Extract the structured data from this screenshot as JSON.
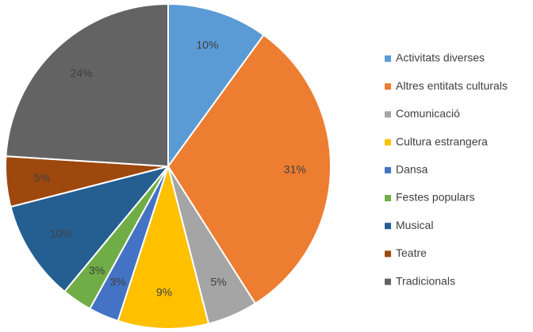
{
  "chart_data": {
    "type": "pie",
    "categories": [
      "Activitats diverses",
      "Altres entitats culturals",
      "Comunicació",
      "Cultura estrangera",
      "Dansa",
      "Festes populars",
      "Musical",
      "Teatre",
      "Tradicionals"
    ],
    "values": [
      10,
      31,
      5,
      9,
      3,
      3,
      10,
      5,
      24
    ],
    "value_labels": [
      "10%",
      "31%",
      "5%",
      "9%",
      "3%",
      "3%",
      "10%",
      "5%",
      "24%"
    ],
    "colors": [
      "#5b9bd5",
      "#ed7d31",
      "#a5a5a5",
      "#ffc000",
      "#4472c4",
      "#70ad47",
      "#255e91",
      "#9e480e",
      "#636363"
    ],
    "legend": "right"
  }
}
